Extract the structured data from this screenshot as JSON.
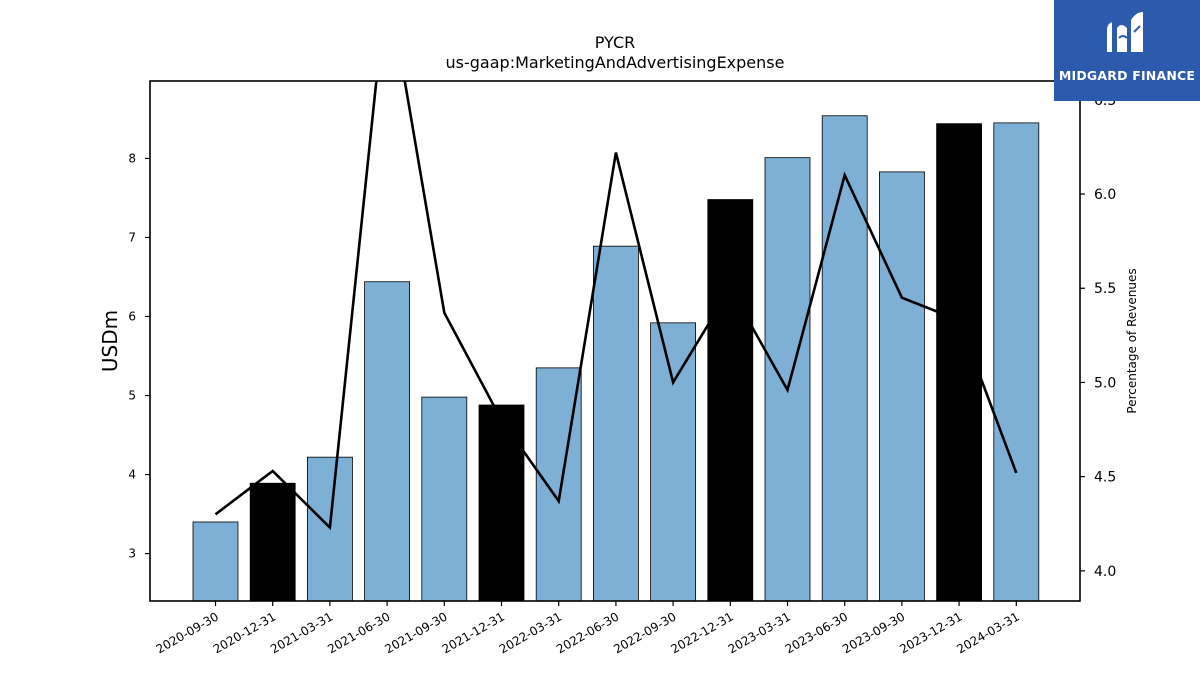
{
  "chart_data": {
    "type": "bar+line",
    "title": "PYCR",
    "subtitle": "us-gaap:MarketingAndAdvertisingExpense",
    "ylabel": "USDm",
    "y2label": "Percentage of Revenues",
    "ylim": [
      2.4,
      8.98
    ],
    "y2lim": [
      3.84,
      6.6
    ],
    "yticks": [
      "3",
      "4",
      "5",
      "6",
      "7",
      "8"
    ],
    "y2ticks": [
      "4.0",
      "4.5",
      "5.0",
      "5.5",
      "6.0",
      "6.5"
    ],
    "categories": [
      "2020-09-30",
      "2020-12-31",
      "2021-03-31",
      "2021-06-30",
      "2021-09-30",
      "2021-12-31",
      "2022-03-31",
      "2022-06-30",
      "2022-09-30",
      "2022-12-31",
      "2023-03-31",
      "2023-06-30",
      "2023-09-30",
      "2023-12-31",
      "2024-03-31"
    ],
    "series": [
      {
        "type": "bar",
        "axis": "left",
        "values": [
          3.4,
          3.89,
          4.22,
          6.44,
          4.98,
          4.88,
          5.35,
          6.89,
          5.92,
          7.48,
          8.01,
          8.54,
          7.83,
          8.44,
          8.45
        ],
        "colors": [
          "#7eb0d5",
          "#000000",
          "#7eb0d5",
          "#7eb0d5",
          "#7eb0d5",
          "#000000",
          "#7eb0d5",
          "#7eb0d5",
          "#7eb0d5",
          "#000000",
          "#7eb0d5",
          "#7eb0d5",
          "#7eb0d5",
          "#000000",
          "#7eb0d5"
        ]
      },
      {
        "type": "line",
        "axis": "right",
        "values": [
          4.3,
          4.53,
          4.23,
          7.15,
          5.37,
          4.8,
          4.37,
          6.22,
          5.0,
          5.5,
          4.96,
          6.1,
          5.45,
          5.33,
          4.52
        ],
        "color": "#000000"
      }
    ],
    "grid": false
  },
  "logo": {
    "text": "MIDGARD FINANCE",
    "color": "#2c5aad"
  }
}
